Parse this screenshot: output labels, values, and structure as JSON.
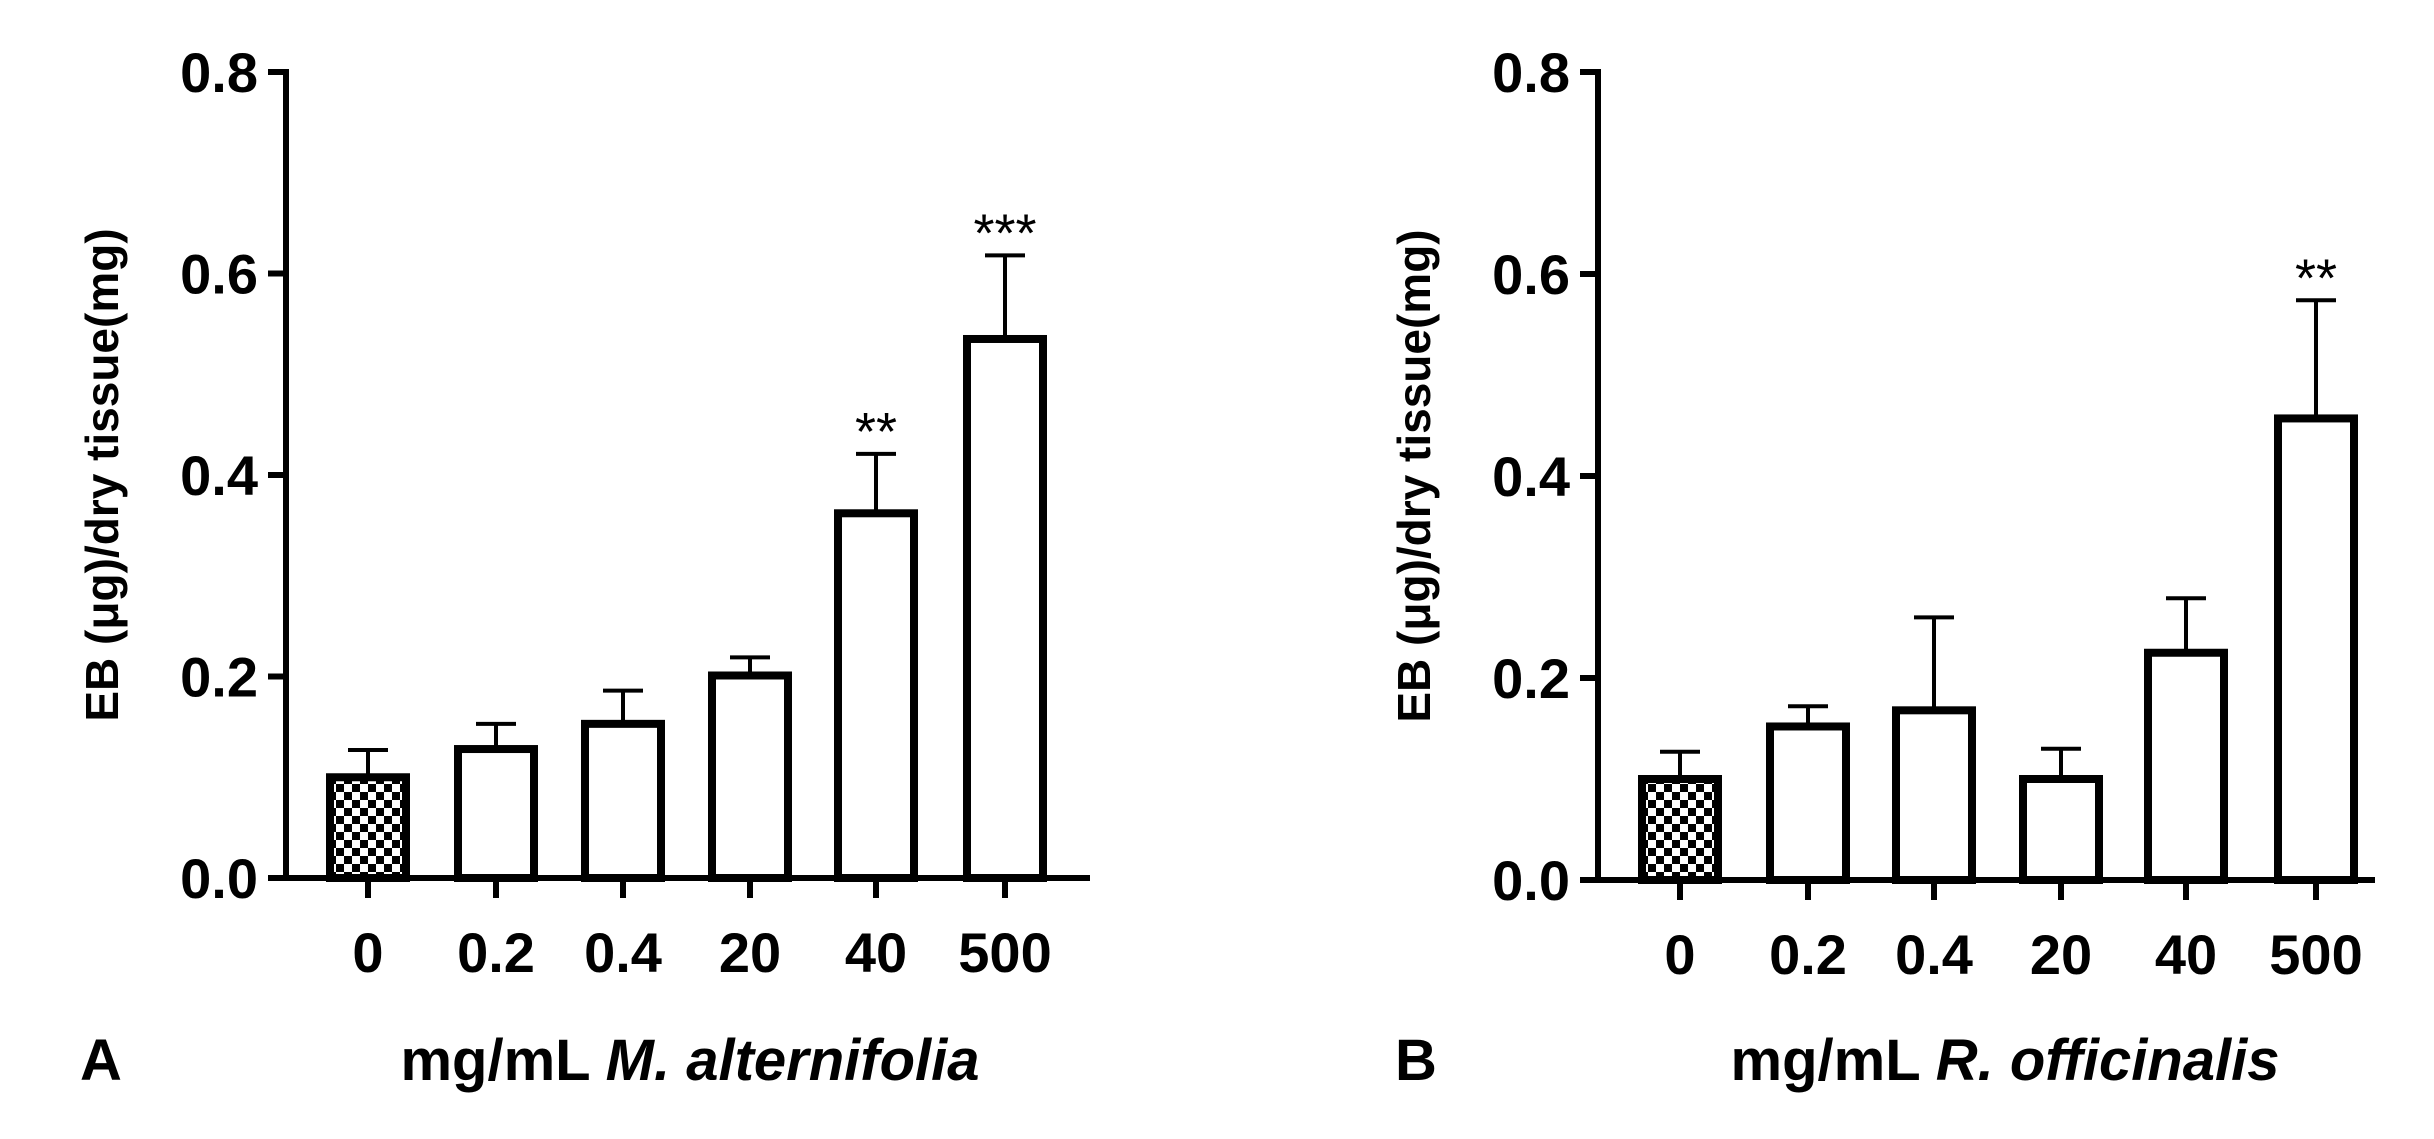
{
  "chart_data": [
    {
      "panel": "A",
      "type": "bar",
      "categories": [
        "0",
        "0.2",
        "0.4",
        "20",
        "40",
        "500"
      ],
      "values": [
        0.1,
        0.128,
        0.153,
        0.201,
        0.362,
        0.535
      ],
      "errors": [
        0.027,
        0.025,
        0.033,
        0.018,
        0.059,
        0.083
      ],
      "significance": [
        "",
        "",
        "",
        "",
        "**",
        "***"
      ],
      "fills": [
        "checker",
        "white",
        "white",
        "white",
        "white",
        "white"
      ],
      "ylabel": "EB (μg)/dry tissue(mg)",
      "xlabel_prefix": "mg/mL ",
      "xlabel_species": "M. alternifolia",
      "yticks": [
        "0.0",
        "0.2",
        "0.4",
        "0.6",
        "0.8"
      ],
      "ylim": [
        0,
        0.8
      ]
    },
    {
      "panel": "B",
      "type": "bar",
      "categories": [
        "0",
        "0.2",
        "0.4",
        "20",
        "40",
        "500"
      ],
      "values": [
        0.1,
        0.152,
        0.168,
        0.1,
        0.225,
        0.457
      ],
      "errors": [
        0.027,
        0.02,
        0.092,
        0.03,
        0.054,
        0.117
      ],
      "significance": [
        "",
        "",
        "",
        "",
        "",
        "**"
      ],
      "fills": [
        "checker",
        "white",
        "white",
        "white",
        "white",
        "white"
      ],
      "ylabel": "EB (μg)/dry tissue(mg)",
      "xlabel_prefix": "mg/mL ",
      "xlabel_species": "R. officinalis",
      "yticks": [
        "0.0",
        "0.2",
        "0.4",
        "0.6",
        "0.8"
      ],
      "ylim": [
        0,
        0.8
      ]
    }
  ]
}
